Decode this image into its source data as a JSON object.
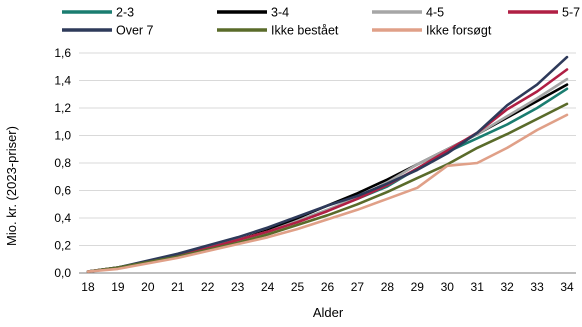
{
  "chart_data": {
    "type": "line",
    "xlabel": "Alder",
    "ylabel": "Mio. kr. (2023-priser)",
    "x": [
      18,
      19,
      20,
      21,
      22,
      23,
      24,
      25,
      26,
      27,
      28,
      29,
      30,
      31,
      32,
      33,
      34
    ],
    "tick_labels_y": [
      "0,0",
      "0,2",
      "0,4",
      "0,6",
      "0,8",
      "1,0",
      "1,2",
      "1,4",
      "1,6"
    ],
    "ylim": [
      0,
      1.6
    ],
    "grid": true,
    "legend_position": "top",
    "series": [
      {
        "name": "2-3",
        "color": "#1a7d70",
        "values": [
          0.01,
          0.04,
          0.08,
          0.13,
          0.18,
          0.24,
          0.3,
          0.38,
          0.46,
          0.54,
          0.63,
          0.76,
          0.88,
          0.98,
          1.08,
          1.2,
          1.34
        ]
      },
      {
        "name": "3-4",
        "color": "#000000",
        "values": [
          0.01,
          0.04,
          0.08,
          0.13,
          0.18,
          0.24,
          0.31,
          0.4,
          0.49,
          0.58,
          0.68,
          0.79,
          0.9,
          1.01,
          1.13,
          1.25,
          1.37
        ]
      },
      {
        "name": "4-5",
        "color": "#a6a6a6",
        "values": [
          0.01,
          0.04,
          0.08,
          0.13,
          0.18,
          0.24,
          0.3,
          0.38,
          0.46,
          0.55,
          0.66,
          0.79,
          0.9,
          1.01,
          1.14,
          1.27,
          1.41
        ]
      },
      {
        "name": "5-7",
        "color": "#b01f44",
        "values": [
          0.01,
          0.04,
          0.08,
          0.13,
          0.18,
          0.24,
          0.3,
          0.37,
          0.45,
          0.54,
          0.64,
          0.76,
          0.89,
          1.02,
          1.19,
          1.32,
          1.48
        ]
      },
      {
        "name": "Over 7",
        "color": "#2e3a5a",
        "values": [
          0.01,
          0.04,
          0.09,
          0.14,
          0.2,
          0.26,
          0.33,
          0.41,
          0.49,
          0.56,
          0.65,
          0.75,
          0.87,
          1.02,
          1.22,
          1.37,
          1.57
        ]
      },
      {
        "name": "Ikke bestået",
        "color": "#5a6b2a",
        "values": [
          0.01,
          0.04,
          0.08,
          0.12,
          0.17,
          0.22,
          0.28,
          0.35,
          0.42,
          0.5,
          0.59,
          0.69,
          0.79,
          0.91,
          1.01,
          1.12,
          1.23
        ]
      },
      {
        "name": "Ikke forsøgt",
        "color": "#e0a088",
        "values": [
          0.01,
          0.03,
          0.07,
          0.11,
          0.16,
          0.21,
          0.26,
          0.32,
          0.39,
          0.46,
          0.54,
          0.62,
          0.78,
          0.8,
          0.91,
          1.04,
          1.15
        ]
      }
    ]
  }
}
